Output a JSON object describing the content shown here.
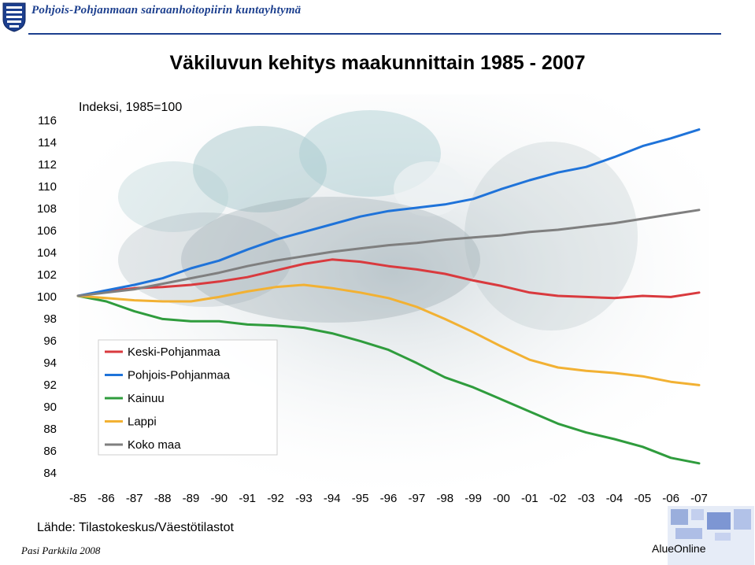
{
  "header": {
    "organization": "Pohjois-Pohjanmaan sairaanhoitopiirin kuntayhtymä"
  },
  "slide": {
    "source": "Lähde: Tilastokeskus/Väestötilastot",
    "author": "Pasi Parkkila 2008",
    "brand": "AlueOnline"
  },
  "chart_data": {
    "type": "line",
    "title": "Väkiluvun kehitys maakunnittain 1985 - 2007",
    "ylabel": "Indeksi, 1985=100",
    "xlabel": "",
    "ylim": [
      84,
      116
    ],
    "y_ticks": [
      84,
      86,
      88,
      90,
      92,
      94,
      96,
      98,
      100,
      102,
      104,
      106,
      108,
      110,
      112,
      114,
      116
    ],
    "x": [
      "-85",
      "-86",
      "-87",
      "-88",
      "-89",
      "-90",
      "-91",
      "-92",
      "-93",
      "-94",
      "-95",
      "-96",
      "-97",
      "-98",
      "-99",
      "-00",
      "-01",
      "-02",
      "-03",
      "-04",
      "-05",
      "-06",
      "-07"
    ],
    "grid": false,
    "legend_position": "lower-left",
    "series": [
      {
        "name": "Keski-Pohjanmaa",
        "color": "#d93a3e",
        "values": [
          100,
          100.4,
          100.7,
          100.8,
          101.0,
          101.3,
          101.7,
          102.3,
          102.9,
          103.3,
          103.1,
          102.7,
          102.4,
          102.0,
          101.4,
          100.9,
          100.3,
          100.0,
          99.9,
          99.8,
          100.0,
          99.9,
          100.3
        ]
      },
      {
        "name": "Pohjois-Pohjanmaa",
        "color": "#1f73d9",
        "values": [
          100,
          100.5,
          101.0,
          101.6,
          102.5,
          103.2,
          104.2,
          105.1,
          105.8,
          106.5,
          107.2,
          107.7,
          108.0,
          108.3,
          108.8,
          109.7,
          110.5,
          111.2,
          111.7,
          112.6,
          113.6,
          114.3,
          115.1
        ]
      },
      {
        "name": "Kainuu",
        "color": "#2f9c3d",
        "values": [
          100,
          99.5,
          98.6,
          97.9,
          97.7,
          97.7,
          97.4,
          97.3,
          97.1,
          96.6,
          95.9,
          95.1,
          93.9,
          92.6,
          91.7,
          90.6,
          89.5,
          88.4,
          87.6,
          87.0,
          86.3,
          85.3,
          84.8
        ]
      },
      {
        "name": "Lappi",
        "color": "#f2b133",
        "values": [
          100,
          99.8,
          99.6,
          99.5,
          99.5,
          99.9,
          100.4,
          100.8,
          101.0,
          100.7,
          100.3,
          99.8,
          99.0,
          97.9,
          96.7,
          95.4,
          94.2,
          93.5,
          93.2,
          93.0,
          92.7,
          92.2,
          91.9
        ]
      },
      {
        "name": "Koko maa",
        "color": "#7f7f7f",
        "values": [
          100,
          100.3,
          100.6,
          101.1,
          101.6,
          102.1,
          102.7,
          103.2,
          103.6,
          104.0,
          104.3,
          104.6,
          104.8,
          105.1,
          105.3,
          105.5,
          105.8,
          106.0,
          106.3,
          106.6,
          107.0,
          107.4,
          107.8
        ]
      }
    ]
  }
}
